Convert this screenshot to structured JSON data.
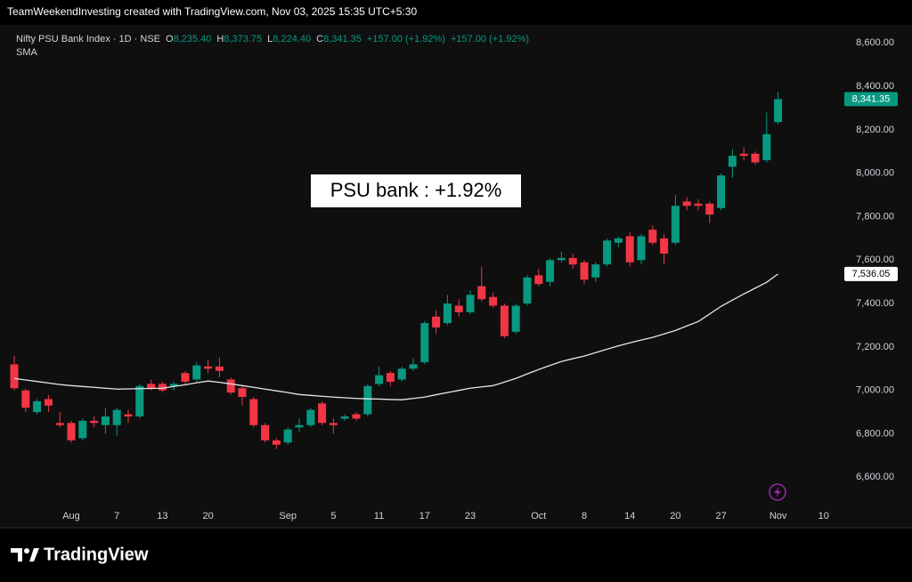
{
  "chart_data": {
    "type": "candlestick",
    "title": "TeamWeekendInvesting created with TradingView.com, Nov 03, 2025 15:35 UTC+5:30",
    "annotation": "PSU bank : +1.92%",
    "brand": "TradingView",
    "categories": [
      null,
      null,
      null,
      null,
      null,
      "Aug",
      null,
      null,
      null,
      "7",
      null,
      null,
      null,
      "13",
      null,
      null,
      null,
      "20",
      null,
      null,
      null,
      null,
      null,
      null,
      "Sep",
      null,
      null,
      null,
      "5",
      null,
      null,
      null,
      "11",
      null,
      null,
      null,
      "17",
      null,
      null,
      null,
      "23",
      null,
      null,
      null,
      null,
      null,
      "Oct",
      null,
      null,
      null,
      "8",
      null,
      null,
      null,
      "14",
      null,
      null,
      null,
      "20",
      null,
      null,
      null,
      "27",
      null,
      null,
      null,
      null,
      "Nov",
      null,
      null,
      null,
      "10"
    ],
    "series": [
      {
        "name": "Nifty PSU Bank Index · 1D · NSE",
        "up_color": "#089981",
        "down_color": "#f23645",
        "legend": [
          {
            "key": "O",
            "value": "8,235.40"
          },
          {
            "key": "H",
            "value": "8,373.75"
          },
          {
            "key": "L",
            "value": "8,224.40"
          },
          {
            "key": "C",
            "value": "8,341.35"
          }
        ],
        "change_labels": [
          "+157.00 (+1.92%)",
          "+157.00 (+1.92%)"
        ],
        "last_label": "8,341.35",
        "open": [
          7120,
          7000,
          6900,
          6960,
          6850,
          6850,
          6780,
          6860,
          6840,
          6840,
          6890,
          6880,
          7030,
          7030,
          7020,
          7080,
          7050,
          7110,
          7110,
          7050,
          7010,
          6960,
          6840,
          6770,
          6760,
          6830,
          6840,
          6940,
          6850,
          6870,
          6890,
          6890,
          7030,
          7080,
          7050,
          7100,
          7130,
          7340,
          7310,
          7390,
          7360,
          7480,
          7430,
          7390,
          7270,
          7400,
          7530,
          7500,
          7600,
          7610,
          7590,
          7520,
          7580,
          7680,
          7710,
          7600,
          7740,
          7700,
          7680,
          7870,
          7860,
          7860,
          7840,
          8030,
          8090,
          8090,
          8060,
          8235.4,
          null,
          null,
          null,
          null
        ],
        "high": [
          7160,
          7010,
          6960,
          6980,
          6900,
          6860,
          6870,
          6880,
          6920,
          6920,
          6910,
          7030,
          7050,
          7040,
          7040,
          7090,
          7130,
          7140,
          7150,
          7060,
          7020,
          6970,
          6850,
          6780,
          6830,
          6870,
          6920,
          6950,
          6870,
          6890,
          6900,
          7030,
          7110,
          7090,
          7110,
          7150,
          7320,
          7370,
          7440,
          7420,
          7460,
          7570,
          7450,
          7400,
          7400,
          7530,
          7560,
          7610,
          7640,
          7630,
          7600,
          7590,
          7700,
          7710,
          7730,
          7720,
          7760,
          7720,
          7900,
          7890,
          7880,
          7870,
          8000,
          8110,
          8120,
          8100,
          8280,
          8373.75,
          null,
          null,
          null,
          null
        ],
        "low": [
          7000,
          6900,
          6890,
          6900,
          6830,
          6760,
          6770,
          6830,
          6800,
          6790,
          6850,
          6870,
          7000,
          6990,
          7000,
          7030,
          7040,
          7080,
          7060,
          6980,
          6930,
          6830,
          6760,
          6730,
          6750,
          6810,
          6830,
          6840,
          6800,
          6860,
          6860,
          6880,
          7020,
          7020,
          7040,
          7090,
          7120,
          7260,
          7300,
          7340,
          7350,
          7410,
          7380,
          7240,
          7260,
          7390,
          7480,
          7480,
          7590,
          7560,
          7490,
          7500,
          7570,
          7660,
          7570,
          7580,
          7670,
          7580,
          7670,
          7830,
          7830,
          7770,
          7830,
          7980,
          8060,
          8040,
          8050,
          8224.4,
          null,
          null,
          null,
          null
        ],
        "close": [
          7010,
          6920,
          6950,
          6930,
          6840,
          6770,
          6860,
          6850,
          6880,
          6910,
          6880,
          7020,
          7010,
          7000,
          7030,
          7040,
          7115,
          7100,
          7090,
          6990,
          6970,
          6840,
          6770,
          6750,
          6820,
          6840,
          6910,
          6850,
          6840,
          6880,
          6870,
          7020,
          7070,
          7040,
          7100,
          7120,
          7310,
          7290,
          7400,
          7360,
          7440,
          7420,
          7390,
          7250,
          7390,
          7520,
          7490,
          7600,
          7610,
          7580,
          7510,
          7580,
          7690,
          7700,
          7590,
          7710,
          7680,
          7630,
          7850,
          7850,
          7850,
          7810,
          7990,
          8080,
          8080,
          8050,
          8180,
          8341.35,
          null,
          null,
          null,
          null
        ]
      },
      {
        "name": "SMA",
        "type": "line",
        "color": "#e6e6e6",
        "last_label": "7,536.05",
        "values": [
          7055,
          7048,
          7041,
          7034,
          7027,
          7022,
          7018,
          7014,
          7010,
          7006,
          7007,
          7008,
          7009,
          7010,
          7018,
          7026,
          7035,
          7043,
          7037,
          7030,
          7022,
          7014,
          7006,
          6998,
          6990,
          6981,
          6977,
          6973,
          6969,
          6966,
          6963,
          6961,
          6960,
          6958,
          6957,
          6963,
          6969,
          6980,
          6990,
          7000,
          7010,
          7016,
          7022,
          7038,
          7055,
          7076,
          7096,
          7115,
          7133,
          7146,
          7158,
          7174,
          7190,
          7205,
          7219,
          7232,
          7244,
          7260,
          7276,
          7297,
          7317,
          7352,
          7387,
          7416,
          7444,
          7471,
          7498,
          7536.05,
          null,
          null,
          null,
          null
        ]
      }
    ],
    "ylim": [
      6470,
      8675
    ],
    "yticks": [
      {
        "value": 6600,
        "label": "6,600.00"
      },
      {
        "value": 6800,
        "label": "6,800.00"
      },
      {
        "value": 7000,
        "label": "7,000.00"
      },
      {
        "value": 7200,
        "label": "7,200.00"
      },
      {
        "value": 7400,
        "label": "7,400.00"
      },
      {
        "value": 7600,
        "label": "7,600.00"
      },
      {
        "value": 7800,
        "label": "7,800.00"
      },
      {
        "value": 8000,
        "label": "8,000.00"
      },
      {
        "value": 8200,
        "label": "8,200.00"
      },
      {
        "value": 8400,
        "label": "8,400.00"
      },
      {
        "value": 8600,
        "label": "8,600.00"
      }
    ],
    "grid": false
  }
}
